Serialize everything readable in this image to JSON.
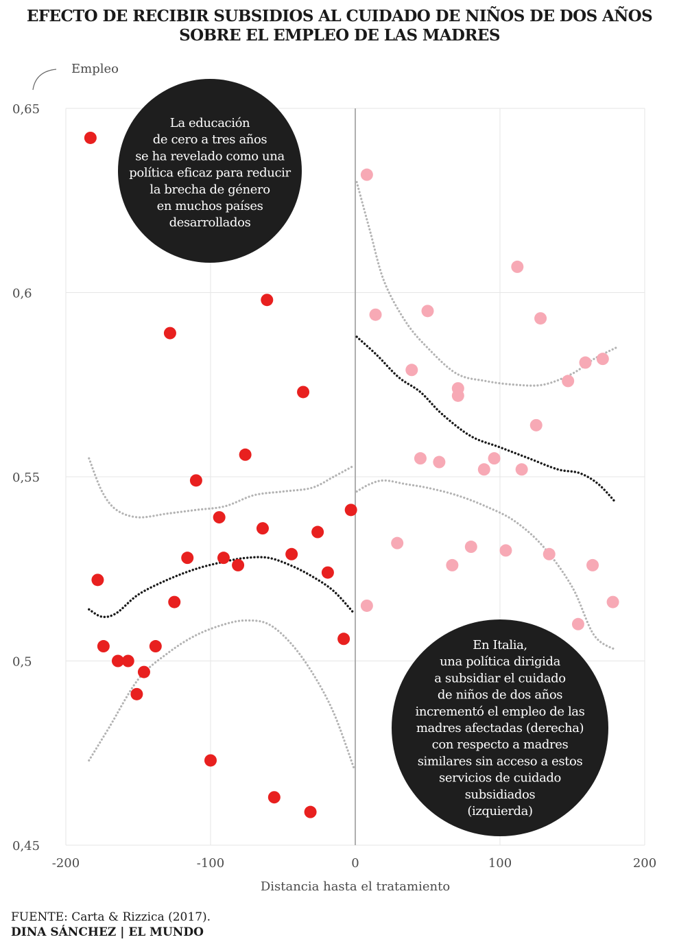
{
  "header": {
    "title_line1": "EFECTO DE RECIBIR SUBSIDIOS AL CUIDADO DE NIÑOS DE DOS AÑOS",
    "title_line2": "SOBRE EL EMPLEO DE LAS MADRES"
  },
  "footer": {
    "source": "FUENTE: Carta & Rizzica (2017).",
    "credit": "DINA SÁNCHEZ | EL MUNDO"
  },
  "colors": {
    "left_points": "#e8201f",
    "right_points": "#f7a9b5",
    "fit_line": "#1a1a1a",
    "ci_line": "#b3b3b3",
    "callout_bg": "#1e1e1e",
    "callout_text": "#ffffff"
  },
  "chart_data": {
    "type": "scatter",
    "xlabel": "Distancia hasta el tratamiento",
    "ylabel": "Empleo",
    "xlim": [
      -200,
      200
    ],
    "ylim": [
      0.45,
      0.65
    ],
    "xticks": [
      -200,
      -100,
      0,
      100,
      200
    ],
    "xtick_labels": [
      "-200",
      "-100",
      "0",
      "100",
      "200"
    ],
    "yticks": [
      0.45,
      0.5,
      0.55,
      0.6,
      0.65
    ],
    "ytick_labels": [
      "0,45",
      "0,5",
      "0,55",
      "0,6",
      "0,65"
    ],
    "grid": true,
    "cutoff_x": 0,
    "series": [
      {
        "role": "left",
        "points": [
          [
            -183,
            0.642
          ],
          [
            -178,
            0.522
          ],
          [
            -174,
            0.504
          ],
          [
            -164,
            0.5
          ],
          [
            -157,
            0.5
          ],
          [
            -151,
            0.491
          ],
          [
            -146,
            0.497
          ],
          [
            -138,
            0.504
          ],
          [
            -128,
            0.589
          ],
          [
            -125,
            0.516
          ],
          [
            -110,
            0.549
          ],
          [
            -116,
            0.528
          ],
          [
            -100,
            0.473
          ],
          [
            -94,
            0.539
          ],
          [
            -91,
            0.528
          ],
          [
            -81,
            0.526
          ],
          [
            -76,
            0.556
          ],
          [
            -64,
            0.536
          ],
          [
            -61,
            0.598
          ],
          [
            -56,
            0.463
          ],
          [
            -44,
            0.529
          ],
          [
            -36,
            0.573
          ],
          [
            -31,
            0.459
          ],
          [
            -26,
            0.535
          ],
          [
            -19,
            0.524
          ],
          [
            -8,
            0.506
          ],
          [
            -3,
            0.541
          ]
        ]
      },
      {
        "role": "right",
        "points": [
          [
            8,
            0.632
          ],
          [
            14,
            0.594
          ],
          [
            8,
            0.515
          ],
          [
            29,
            0.532
          ],
          [
            39,
            0.579
          ],
          [
            45,
            0.555
          ],
          [
            50,
            0.595
          ],
          [
            58,
            0.554
          ],
          [
            67,
            0.526
          ],
          [
            71,
            0.574
          ],
          [
            71,
            0.572
          ],
          [
            80,
            0.531
          ],
          [
            89,
            0.552
          ],
          [
            96,
            0.555
          ],
          [
            104,
            0.53
          ],
          [
            112,
            0.607
          ],
          [
            115,
            0.552
          ],
          [
            125,
            0.564
          ],
          [
            128,
            0.593
          ],
          [
            134,
            0.529
          ],
          [
            147,
            0.576
          ],
          [
            154,
            0.51
          ],
          [
            159,
            0.581
          ],
          [
            164,
            0.526
          ],
          [
            171,
            0.582
          ],
          [
            178,
            0.516
          ]
        ]
      }
    ],
    "fits": [
      {
        "role": "left-fit",
        "points": [
          [
            -184,
            0.514
          ],
          [
            -175,
            0.512
          ],
          [
            -165,
            0.513
          ],
          [
            -150,
            0.518
          ],
          [
            -130,
            0.522
          ],
          [
            -110,
            0.525
          ],
          [
            -90,
            0.527
          ],
          [
            -75,
            0.528
          ],
          [
            -60,
            0.528
          ],
          [
            -45,
            0.526
          ],
          [
            -30,
            0.523
          ],
          [
            -15,
            0.519
          ],
          [
            -1,
            0.513
          ]
        ]
      },
      {
        "role": "right-fit",
        "points": [
          [
            1,
            0.588
          ],
          [
            15,
            0.583
          ],
          [
            30,
            0.577
          ],
          [
            45,
            0.573
          ],
          [
            60,
            0.567
          ],
          [
            80,
            0.561
          ],
          [
            100,
            0.558
          ],
          [
            120,
            0.555
          ],
          [
            140,
            0.552
          ],
          [
            155,
            0.551
          ],
          [
            168,
            0.548
          ],
          [
            180,
            0.543
          ]
        ]
      }
    ],
    "confidence_bands": [
      {
        "role": "left-upper",
        "points": [
          [
            -184,
            0.555
          ],
          [
            -175,
            0.546
          ],
          [
            -165,
            0.541
          ],
          [
            -150,
            0.539
          ],
          [
            -130,
            0.54
          ],
          [
            -110,
            0.541
          ],
          [
            -90,
            0.542
          ],
          [
            -70,
            0.545
          ],
          [
            -50,
            0.546
          ],
          [
            -30,
            0.547
          ],
          [
            -15,
            0.55
          ],
          [
            -1,
            0.553
          ]
        ]
      },
      {
        "role": "left-lower",
        "points": [
          [
            -184,
            0.473
          ],
          [
            -170,
            0.482
          ],
          [
            -150,
            0.495
          ],
          [
            -130,
            0.502
          ],
          [
            -110,
            0.507
          ],
          [
            -90,
            0.51
          ],
          [
            -75,
            0.511
          ],
          [
            -60,
            0.51
          ],
          [
            -45,
            0.505
          ],
          [
            -30,
            0.497
          ],
          [
            -15,
            0.486
          ],
          [
            -1,
            0.471
          ]
        ]
      },
      {
        "role": "right-upper",
        "points": [
          [
            1,
            0.63
          ],
          [
            10,
            0.617
          ],
          [
            20,
            0.603
          ],
          [
            35,
            0.592
          ],
          [
            50,
            0.585
          ],
          [
            70,
            0.578
          ],
          [
            90,
            0.576
          ],
          [
            110,
            0.575
          ],
          [
            130,
            0.575
          ],
          [
            150,
            0.578
          ],
          [
            165,
            0.582
          ],
          [
            180,
            0.585
          ]
        ]
      },
      {
        "role": "right-lower",
        "points": [
          [
            1,
            0.546
          ],
          [
            10,
            0.548
          ],
          [
            20,
            0.549
          ],
          [
            35,
            0.548
          ],
          [
            50,
            0.547
          ],
          [
            70,
            0.545
          ],
          [
            90,
            0.542
          ],
          [
            110,
            0.538
          ],
          [
            130,
            0.531
          ],
          [
            150,
            0.52
          ],
          [
            165,
            0.507
          ],
          [
            180,
            0.503
          ]
        ]
      }
    ],
    "annotations": {
      "callout_left": [
        "La educación",
        "de cero a tres años",
        "se ha revelado como una",
        "política eficaz para reducir",
        "la brecha de género",
        "en muchos países",
        "desarrollados"
      ],
      "callout_right": [
        "En Italia,",
        "una política dirigida",
        "a subsidiar el cuidado",
        "de niños de dos años",
        "incrementó el empleo de las",
        "madres afectadas (derecha)",
        "con respecto a madres",
        "similares sin acceso a estos",
        "servicios de cuidado",
        "subsidiados",
        "(izquierda)"
      ]
    }
  }
}
